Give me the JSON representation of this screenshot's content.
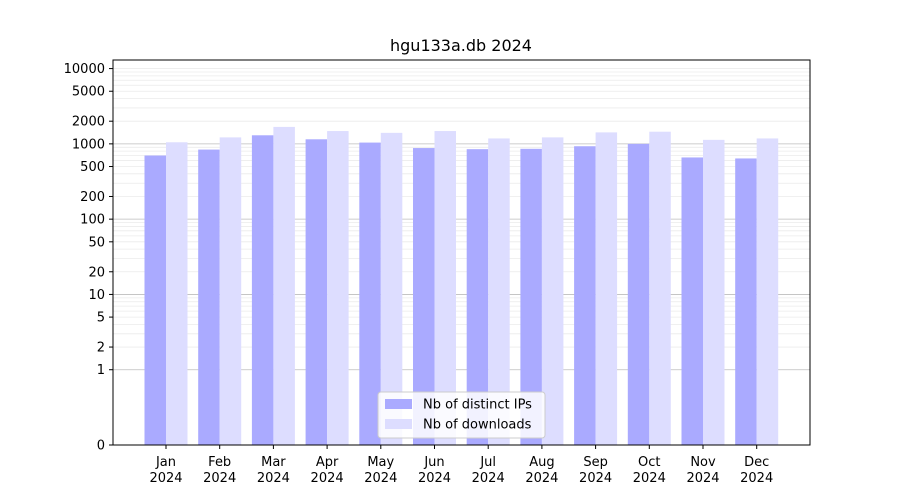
{
  "chart_data": {
    "type": "bar",
    "title": "hgu133a.db 2024",
    "xlabel": "",
    "ylabel": "",
    "yscale": "symlog",
    "ylim": [
      0,
      13000
    ],
    "yticks": [
      0,
      1,
      2,
      5,
      10,
      20,
      50,
      100,
      200,
      500,
      1000,
      2000,
      5000,
      10000
    ],
    "grid": true,
    "legend_position": "bottom-center",
    "categories": [
      "Jan\n2024",
      "Feb\n2024",
      "Mar\n2024",
      "Apr\n2024",
      "May\n2024",
      "Jun\n2024",
      "Jul\n2024",
      "Aug\n2024",
      "Sep\n2024",
      "Oct\n2024",
      "Nov\n2024",
      "Dec\n2024"
    ],
    "series": [
      {
        "name": "Nb of distinct IPs",
        "color": "#aaaaff",
        "values": [
          700,
          840,
          1300,
          1150,
          1040,
          880,
          850,
          860,
          930,
          1000,
          660,
          640
        ]
      },
      {
        "name": "Nb of downloads",
        "color": "#ddddff",
        "values": [
          1050,
          1220,
          1680,
          1480,
          1400,
          1480,
          1180,
          1220,
          1420,
          1450,
          1130,
          1180
        ]
      }
    ]
  }
}
